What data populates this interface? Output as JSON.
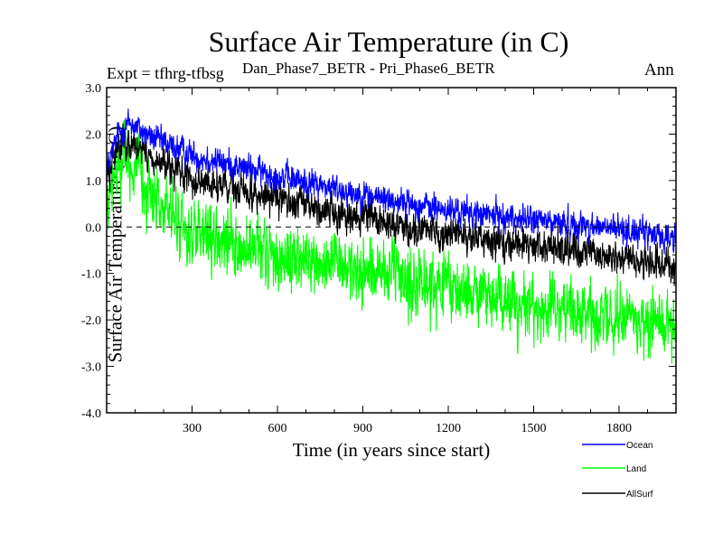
{
  "chart_data": {
    "type": "line",
    "title": "Surface Air Temperature (in C)",
    "subtitle": "Dan_Phase7_BETR - Pri_Phase6_BETR",
    "expt_label": "Expt = tfhrg-tfbsg",
    "season": "Ann",
    "xlabel": "Time (in years since start)",
    "ylabel": "Surface Air Temperature (in C)",
    "xlim": [
      0,
      2000
    ],
    "ylim": [
      -4.0,
      3.0
    ],
    "x_ticks": [
      300,
      600,
      900,
      1200,
      1500,
      1800
    ],
    "x_tick_labels": [
      "300",
      "600",
      "900",
      "1200",
      "1500",
      "1800"
    ],
    "y_ticks": [
      3.0,
      2.0,
      1.0,
      0.0,
      -1.0,
      -2.0,
      -3.0,
      -4.0
    ],
    "y_tick_labels": [
      "3.0",
      "2.0",
      "1.0",
      "0.0",
      "-1.0",
      "-2.0",
      "-3.0",
      "-4.0"
    ],
    "reference_line": 0.0,
    "series": [
      {
        "name": "Ocean",
        "color": "#0000ff",
        "noise": 0.14,
        "trend": [
          [
            0,
            1.2
          ],
          [
            40,
            2.0
          ],
          [
            80,
            2.25
          ],
          [
            150,
            1.95
          ],
          [
            300,
            1.55
          ],
          [
            600,
            1.1
          ],
          [
            900,
            0.7
          ],
          [
            1200,
            0.35
          ],
          [
            1500,
            0.15
          ],
          [
            1800,
            -0.05
          ],
          [
            2000,
            -0.25
          ]
        ]
      },
      {
        "name": "Land",
        "color": "#00ff00",
        "noise": 0.32,
        "trend": [
          [
            0,
            0.2
          ],
          [
            30,
            1.2
          ],
          [
            60,
            1.65
          ],
          [
            100,
            1.2
          ],
          [
            200,
            0.4
          ],
          [
            300,
            -0.2
          ],
          [
            500,
            -0.55
          ],
          [
            700,
            -0.75
          ],
          [
            900,
            -0.95
          ],
          [
            1100,
            -1.2
          ],
          [
            1300,
            -1.45
          ],
          [
            1500,
            -1.7
          ],
          [
            1700,
            -1.9
          ],
          [
            1900,
            -2.0
          ],
          [
            2000,
            -2.05
          ]
        ]
      },
      {
        "name": "AllSurf",
        "color": "#000000",
        "noise": 0.17,
        "trend": [
          [
            0,
            1.0
          ],
          [
            40,
            1.8
          ],
          [
            80,
            1.85
          ],
          [
            150,
            1.5
          ],
          [
            300,
            1.0
          ],
          [
            600,
            0.6
          ],
          [
            900,
            0.2
          ],
          [
            1200,
            -0.15
          ],
          [
            1500,
            -0.4
          ],
          [
            1800,
            -0.65
          ],
          [
            2000,
            -0.85
          ]
        ]
      }
    ]
  }
}
